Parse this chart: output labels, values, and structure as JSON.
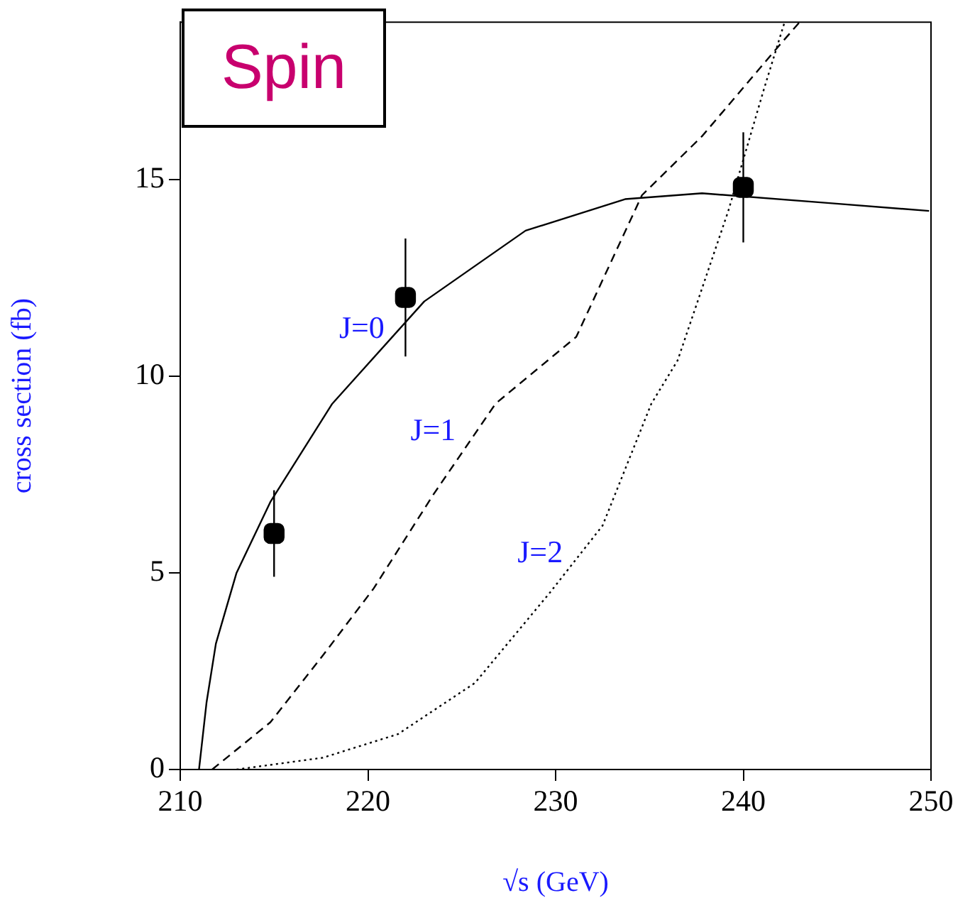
{
  "chart_data": {
    "type": "line",
    "title": "Spin",
    "xlabel": "√s (GeV)",
    "ylabel": "cross section (fb)",
    "xlim": [
      210,
      250
    ],
    "xticks": [
      210,
      220,
      230,
      240,
      250
    ],
    "ylim": [
      0,
      19
    ],
    "yticks": [
      0,
      5,
      10,
      15
    ],
    "grid": false,
    "legend": false,
    "series": [
      {
        "name": "J=0",
        "color": "#000000",
        "line_style": "solid",
        "marker": "none",
        "x": [
          211.0,
          211.4,
          211.9,
          213.0,
          214.8,
          218.1,
          223.0,
          228.4,
          233.7,
          237.8,
          244.6,
          249.9
        ],
        "values": [
          0.0,
          1.7,
          3.2,
          5.0,
          6.8,
          9.3,
          11.9,
          13.7,
          14.5,
          14.65,
          14.4,
          14.2
        ]
      },
      {
        "name": "J=1",
        "color": "#000000",
        "line_style": "dashed",
        "marker": "none",
        "x": [
          211.7,
          214.8,
          217.6,
          220.3,
          223.5,
          226.8,
          231.1,
          234.6,
          237.8,
          241.9,
          243.0
        ],
        "values": [
          0.0,
          1.2,
          2.9,
          4.6,
          7.0,
          9.3,
          11.0,
          14.6,
          16.1,
          18.4,
          19.0
        ]
      },
      {
        "name": "J=2",
        "color": "#000000",
        "line_style": "dotted",
        "marker": "none",
        "x": [
          213.0,
          217.6,
          221.6,
          225.7,
          229.7,
          232.5,
          235.1,
          236.5,
          239.2,
          241.1,
          242.2
        ],
        "values": [
          0.0,
          0.3,
          0.9,
          2.2,
          4.5,
          6.2,
          9.3,
          10.4,
          14.2,
          17.3,
          19.0
        ]
      },
      {
        "type": "scatter",
        "color": "#000000",
        "marker": "square",
        "x": [
          215,
          222,
          240
        ],
        "values": [
          6.0,
          12.0,
          14.8
        ],
        "errors": [
          1.1,
          1.5,
          1.4
        ]
      }
    ]
  }
}
